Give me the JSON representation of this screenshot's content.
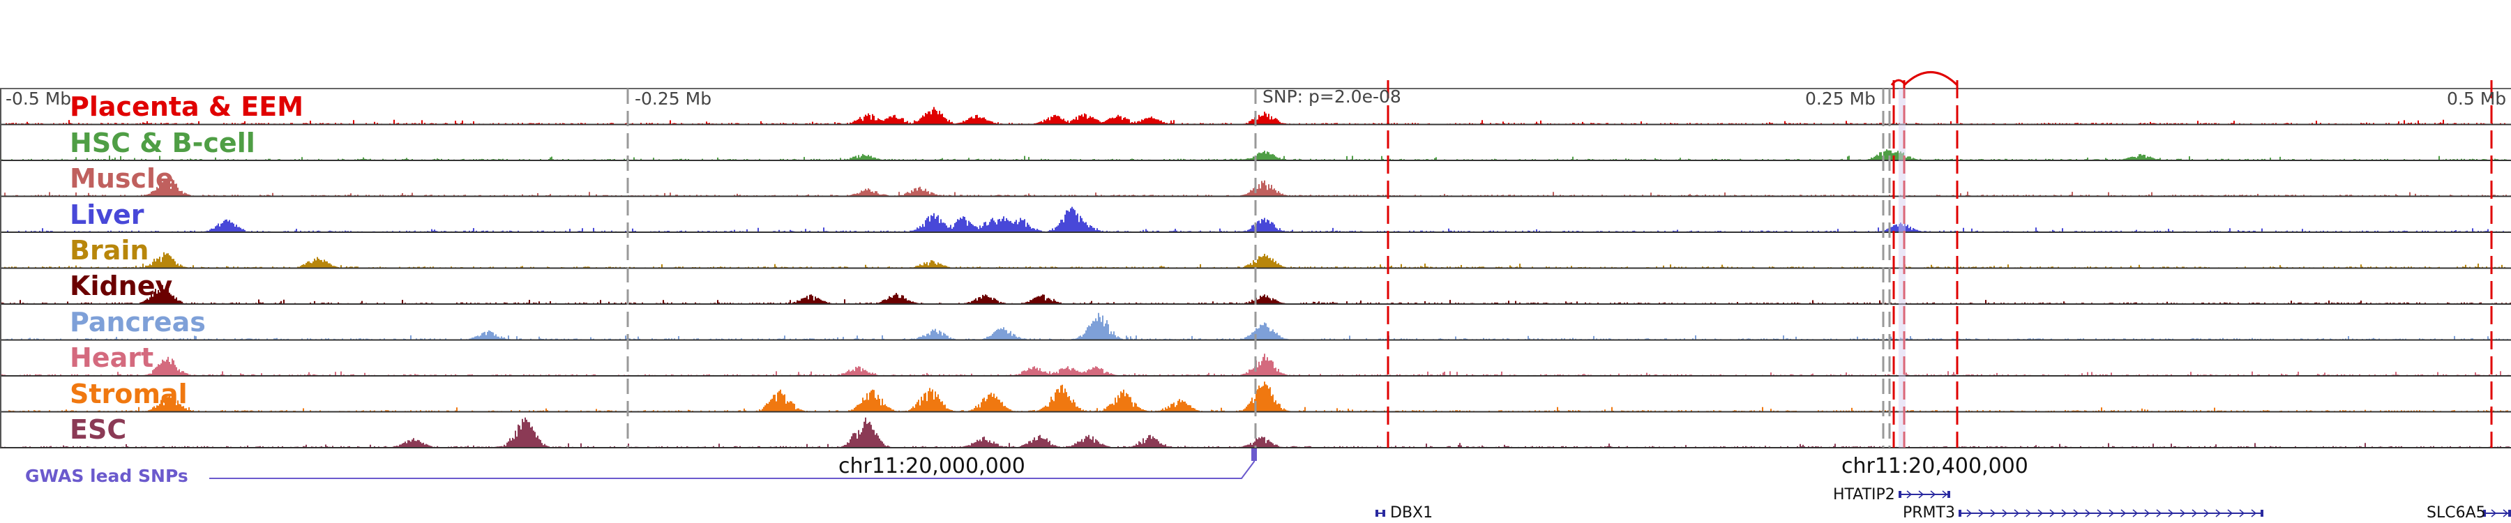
{
  "axis": {
    "ticks": [
      "-0.5 Mb",
      "-0.25 Mb",
      "SNP: p=2.0e-08",
      "0.25 Mb",
      "0.5 Mb"
    ],
    "coordinates": [
      "chr11:20,000,000",
      "chr11:20,400,000"
    ]
  },
  "tracks": [
    {
      "label": "Placenta & EEM",
      "color": "#e00000"
    },
    {
      "label": "HSC & B-cell",
      "color": "#4f9e45"
    },
    {
      "label": "Muscle",
      "color": "#c0605e"
    },
    {
      "label": "Liver",
      "color": "#4848d8"
    },
    {
      "label": "Brain",
      "color": "#b8860b"
    },
    {
      "label": "Kidney",
      "color": "#6b0000"
    },
    {
      "label": "Pancreas",
      "color": "#7ea0d8"
    },
    {
      "label": "Heart",
      "color": "#d46a7e"
    },
    {
      "label": "Stromal",
      "color": "#f07810"
    },
    {
      "label": "ESC",
      "color": "#8b3a55"
    }
  ],
  "gwas": {
    "label": "GWAS lead SNPs",
    "color": "#6b5acd"
  },
  "genes": [
    {
      "name": "DBX1"
    },
    {
      "name": "HTATIP2"
    },
    {
      "name": "PRMT3"
    },
    {
      "name": "SLC6A5"
    }
  ],
  "colors": {
    "highlight": "#e00000",
    "guide": "#999999",
    "gene": "#2a2aa0"
  }
}
